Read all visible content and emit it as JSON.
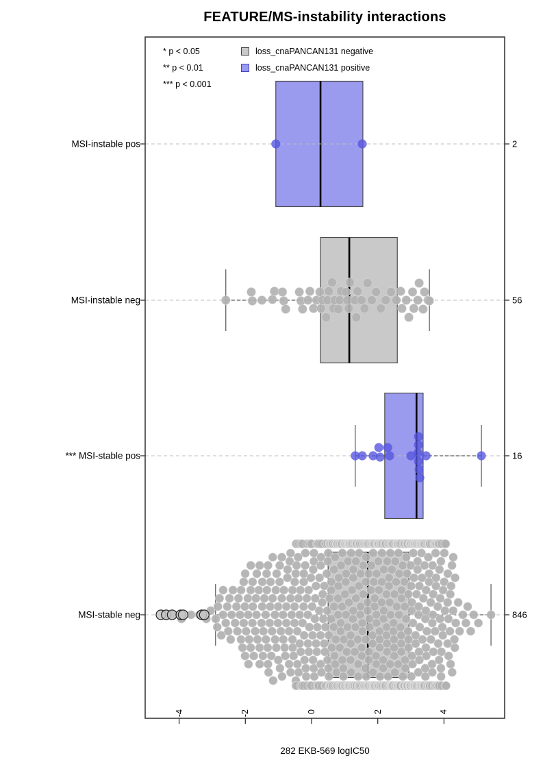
{
  "chart_data": {
    "type": "boxplot-beeswarm",
    "orientation": "horizontal",
    "title": "FEATURE/MS-instability interactions",
    "xlabel": "282 EKB-569 logIC50",
    "x_ticks": [
      -4,
      -2,
      0,
      2,
      4
    ],
    "x_range": [
      -5.0,
      5.8
    ],
    "grid": "dashed horizontal guide line per category",
    "legend_position": "top-left inside plot area",
    "significance_legend": [
      "* p < 0.05",
      "** p < 0.01",
      "*** p < 0.001"
    ],
    "series_legend": [
      {
        "label": "loss_cnaPANCAN131 negative",
        "color": "#c9c9c9",
        "border": "#444444"
      },
      {
        "label": "loss_cnaPANCAN131 positive",
        "color": "#9a9aef",
        "border": "#4343c8"
      }
    ],
    "colors": {
      "negative_box_fill": "#c9c9c9",
      "negative_point": "#b2b2b2",
      "positive_box_fill": "#9a9aef",
      "positive_point": "#5656e0",
      "guide_line": "#bdbdbd",
      "whisker_stem": "#333333",
      "frame": "#3a3a3a"
    },
    "counts_axis": [
      2,
      56,
      16,
      846
    ],
    "groups": [
      {
        "label": "MSI-instable pos",
        "significance": "",
        "n": 2,
        "fill": "#9a9aef",
        "point_fill": "#5656e0",
        "box": {
          "q1": -1.08,
          "median": 0.27,
          "q3": 1.55
        },
        "whisker_lo": null,
        "whisker_hi": null,
        "points": [
          [
            -1.08,
            0
          ],
          [
            1.53,
            0
          ]
        ]
      },
      {
        "label": "MSI-instable neg",
        "significance": "",
        "n": 56,
        "fill": "#c9c9c9",
        "point_fill": "#b2b2b2",
        "box": {
          "q1": 0.27,
          "median": 1.14,
          "q3": 2.59
        },
        "whisker_lo": -2.59,
        "whisker_hi": 3.56,
        "points": [
          [
            -2.59,
            0
          ],
          [
            -1.82,
            -12
          ],
          [
            -1.79,
            1
          ],
          [
            -1.5,
            0
          ],
          [
            -1.18,
            -1
          ],
          [
            -1.12,
            -13
          ],
          [
            -0.88,
            -12
          ],
          [
            -0.84,
            1
          ],
          [
            -0.78,
            13
          ],
          [
            -0.37,
            -12
          ],
          [
            -0.32,
            1
          ],
          [
            -0.27,
            13
          ],
          [
            -0.11,
            0
          ],
          [
            -0.05,
            -13
          ],
          [
            0.06,
            12
          ],
          [
            0.15,
            0
          ],
          [
            0.25,
            -12
          ],
          [
            0.29,
            12
          ],
          [
            0.33,
            0
          ],
          [
            0.44,
            25
          ],
          [
            0.48,
            0
          ],
          [
            0.52,
            -13
          ],
          [
            0.62,
            -26
          ],
          [
            0.66,
            12
          ],
          [
            0.7,
            0
          ],
          [
            0.81,
            13
          ],
          [
            0.85,
            0
          ],
          [
            0.89,
            -13
          ],
          [
            1.04,
            -12
          ],
          [
            1.08,
            0
          ],
          [
            1.12,
            12
          ],
          [
            1.16,
            -26
          ],
          [
            1.31,
            0
          ],
          [
            1.35,
            25
          ],
          [
            1.39,
            -13
          ],
          [
            1.51,
            0
          ],
          [
            1.6,
            12
          ],
          [
            1.69,
            -25
          ],
          [
            1.82,
            0
          ],
          [
            1.95,
            -12
          ],
          [
            2.09,
            12
          ],
          [
            2.24,
            0
          ],
          [
            2.4,
            -12
          ],
          [
            2.56,
            0
          ],
          [
            2.69,
            -13
          ],
          [
            2.73,
            12
          ],
          [
            2.86,
            0
          ],
          [
            2.94,
            25
          ],
          [
            3.05,
            -12
          ],
          [
            3.09,
            12
          ],
          [
            3.21,
            0
          ],
          [
            3.25,
            -25
          ],
          [
            3.37,
            13
          ],
          [
            3.41,
            -12
          ],
          [
            3.52,
            0
          ],
          [
            3.56,
            1
          ]
        ]
      },
      {
        "label": "MSI-stable pos",
        "significance": "***",
        "n": 16,
        "fill": "#9a9aef",
        "point_fill": "#5656e0",
        "box": {
          "q1": 2.21,
          "median": 3.17,
          "q3": 3.37
        },
        "whisker_lo": 1.32,
        "whisker_hi": 5.13,
        "points": [
          [
            1.32,
            0
          ],
          [
            1.53,
            0
          ],
          [
            1.86,
            0
          ],
          [
            2.03,
            -12
          ],
          [
            2.07,
            2
          ],
          [
            2.3,
            -12
          ],
          [
            2.36,
            0
          ],
          [
            3.0,
            0
          ],
          [
            3.23,
            -28
          ],
          [
            3.23,
            -16
          ],
          [
            3.21,
            -4
          ],
          [
            3.23,
            8
          ],
          [
            3.25,
            20
          ],
          [
            3.27,
            32
          ],
          [
            3.46,
            0
          ],
          [
            5.13,
            0
          ]
        ]
      },
      {
        "label": "MSI-stable neg",
        "significance": "",
        "n": 846,
        "fill": "#c9c9c9",
        "point_fill": "#b2b2b2",
        "box": {
          "q1": 0.5,
          "median": 1.7,
          "q3": 2.94
        },
        "whisker_lo": -2.9,
        "whisker_hi": 5.42,
        "outliers": [
          -4.55,
          -4.39,
          -4.21,
          -3.95,
          -3.88,
          -3.32,
          -3.24
        ],
        "swarm": {
          "n": 845,
          "quantiles": [
            [
              0,
              -4.55
            ],
            [
              0.003,
              -3.9
            ],
            [
              0.006,
              -3.25
            ],
            [
              0.0085,
              -2.92
            ],
            [
              0.03,
              -2.15
            ],
            [
              0.07,
              -1.45
            ],
            [
              0.13,
              -0.55
            ],
            [
              0.25,
              0.5
            ],
            [
              0.5,
              1.7
            ],
            [
              0.75,
              2.94
            ],
            [
              0.88,
              3.48
            ],
            [
              0.96,
              3.95
            ],
            [
              0.99,
              4.35
            ],
            [
              0.998,
              4.85
            ],
            [
              1,
              5.1
            ]
          ],
          "extra": [
            5.42
          ]
        }
      }
    ]
  }
}
